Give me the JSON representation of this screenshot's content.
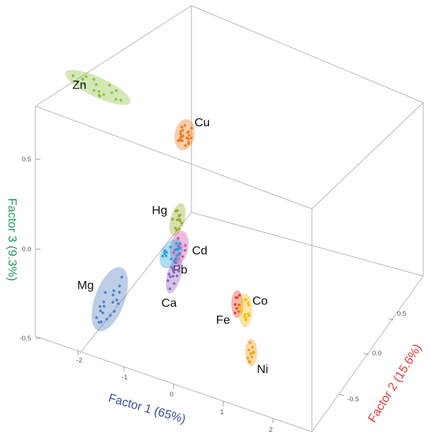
{
  "chart_data": {
    "type": "scatter",
    "dimensions": 3,
    "title": "",
    "axes": {
      "x": {
        "label": "Factor 1 (65%)",
        "color": "#3a4fa6",
        "range": [
          -2.3,
          2.3
        ],
        "ticks": [
          "-2",
          "-1",
          "0",
          "1",
          "2"
        ]
      },
      "y": {
        "label": "Factor 2 (15.6%)",
        "color": "#e83a3a",
        "range": [
          -0.7,
          0.7
        ],
        "ticks": [
          "-0.5",
          "0.0",
          "0.5"
        ]
      },
      "z": {
        "label": "Factor 3 (9.3%)",
        "color": "#1e9e5a",
        "range": [
          -0.65,
          0.75
        ],
        "ticks": [
          "-0.5",
          "0.0",
          "0.5"
        ]
      }
    },
    "grid": false,
    "legend": "none",
    "clusters": [
      {
        "label": "Cu",
        "color": "#ee7d22",
        "centroid": [
          0.55,
          0.45,
          0.92
        ],
        "spread": [
          0.1,
          0.16
        ],
        "angle": 10,
        "n": 22
      },
      {
        "label": "Zn",
        "color": "#8dc13f",
        "centroid": [
          -1.55,
          0.0,
          0.75
        ],
        "spread": [
          0.36,
          0.1
        ],
        "angle": 25,
        "n": 18
      },
      {
        "label": "Hg",
        "color": "#9aab2e",
        "centroid": [
          0.15,
          0.1,
          0.23
        ],
        "spread": [
          0.07,
          0.17
        ],
        "angle": 15,
        "n": 12
      },
      {
        "label": "Cd",
        "color": "#d04fa8",
        "centroid": [
          0.15,
          0.05,
          0.05
        ],
        "spread": [
          0.09,
          0.17
        ],
        "angle": 10,
        "n": 13
      },
      {
        "label": "Pb",
        "color": "#2aa3d8",
        "centroid": [
          -0.05,
          0.0,
          -0.03
        ],
        "spread": [
          0.1,
          0.16
        ],
        "angle": 30,
        "n": 12
      },
      {
        "label": "Ca",
        "color": "#8b64c0",
        "centroid": [
          -0.1,
          -0.15,
          -0.23
        ],
        "spread": [
          0.07,
          0.19
        ],
        "angle": 15,
        "n": 14
      },
      {
        "label": "Mg",
        "color": "#4f7ec0",
        "centroid": [
          -1.45,
          -0.2,
          -0.52
        ],
        "spread": [
          0.15,
          0.34
        ],
        "angle": 20,
        "n": 20
      },
      {
        "label": "Fe",
        "color": "#e8432e",
        "centroid": [
          1.3,
          0.0,
          -0.18
        ],
        "spread": [
          0.06,
          0.14
        ],
        "angle": 0,
        "n": 8
      },
      {
        "label": "Co",
        "color": "#f5be12",
        "centroid": [
          1.5,
          0.05,
          -0.17
        ],
        "spread": [
          0.07,
          0.17
        ],
        "angle": 0,
        "n": 14
      },
      {
        "label": "Ni",
        "color": "#f0a11a",
        "centroid": [
          1.55,
          -0.05,
          -0.45
        ],
        "spread": [
          0.06,
          0.14
        ],
        "angle": 0,
        "n": 10
      }
    ]
  }
}
